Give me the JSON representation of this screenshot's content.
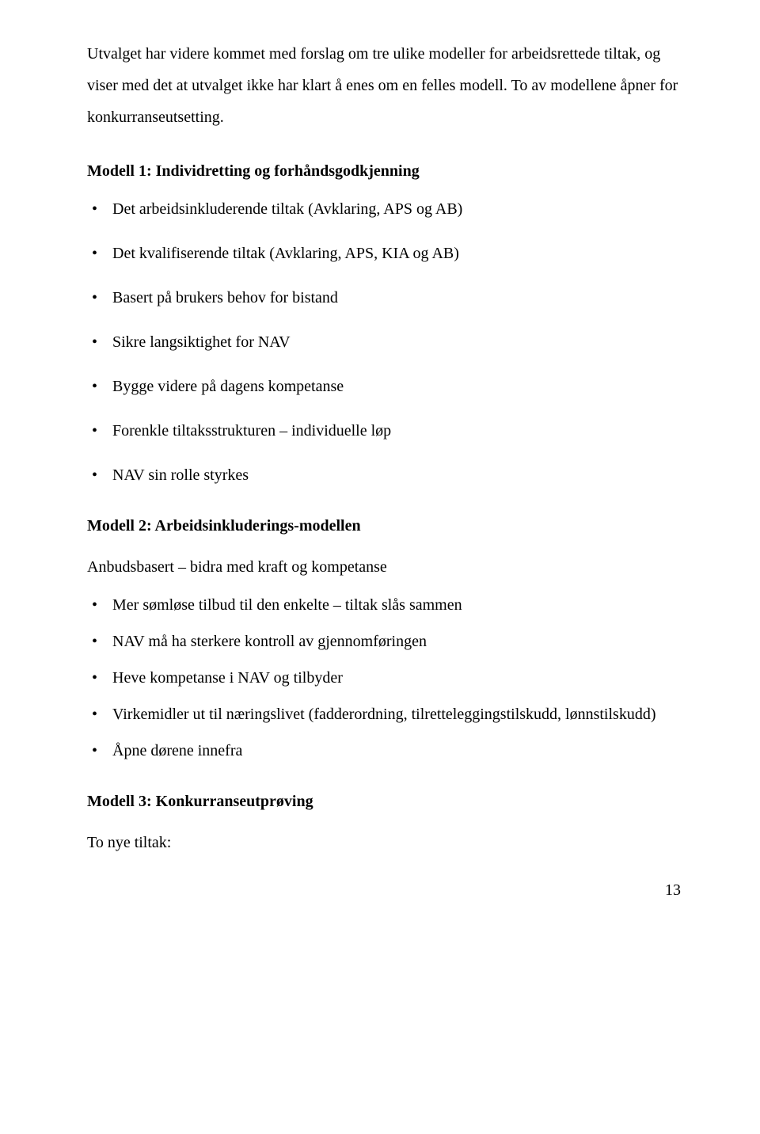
{
  "intro": {
    "paragraph": "Utvalget har videre kommet med forslag om tre ulike modeller for arbeidsrettede tiltak, og viser med det at utvalget ikke har klart å enes om en felles modell. To av modellene åpner for konkurranseutsetting."
  },
  "model1": {
    "heading": "Modell 1: Individretting og forhåndsgodkjenning",
    "items": [
      "Det arbeidsinkluderende tiltak (Avklaring, APS og AB)",
      "Det kvalifiserende tiltak (Avklaring, APS, KIA og AB)",
      "Basert på brukers behov for bistand",
      "Sikre langsiktighet for NAV",
      "Bygge videre på dagens kompetanse",
      "Forenkle tiltaksstrukturen – individuelle løp",
      "NAV sin rolle styrkes"
    ]
  },
  "model2": {
    "heading": "Modell 2: Arbeidsinkluderings-modellen",
    "subtext": "Anbudsbasert – bidra med kraft og kompetanse",
    "items": [
      "Mer sømløse tilbud til den enkelte – tiltak slås sammen",
      "NAV må ha sterkere kontroll av gjennomføringen",
      "Heve kompetanse i NAV og tilbyder",
      "Virkemidler ut til næringslivet (fadderordning, tilretteleggingstilskudd, lønnstilskudd)",
      "Åpne dørene innefra"
    ]
  },
  "model3": {
    "heading": "Modell 3: Konkurranseutprøving",
    "subtext": "To nye tiltak:"
  },
  "page_number": "13"
}
